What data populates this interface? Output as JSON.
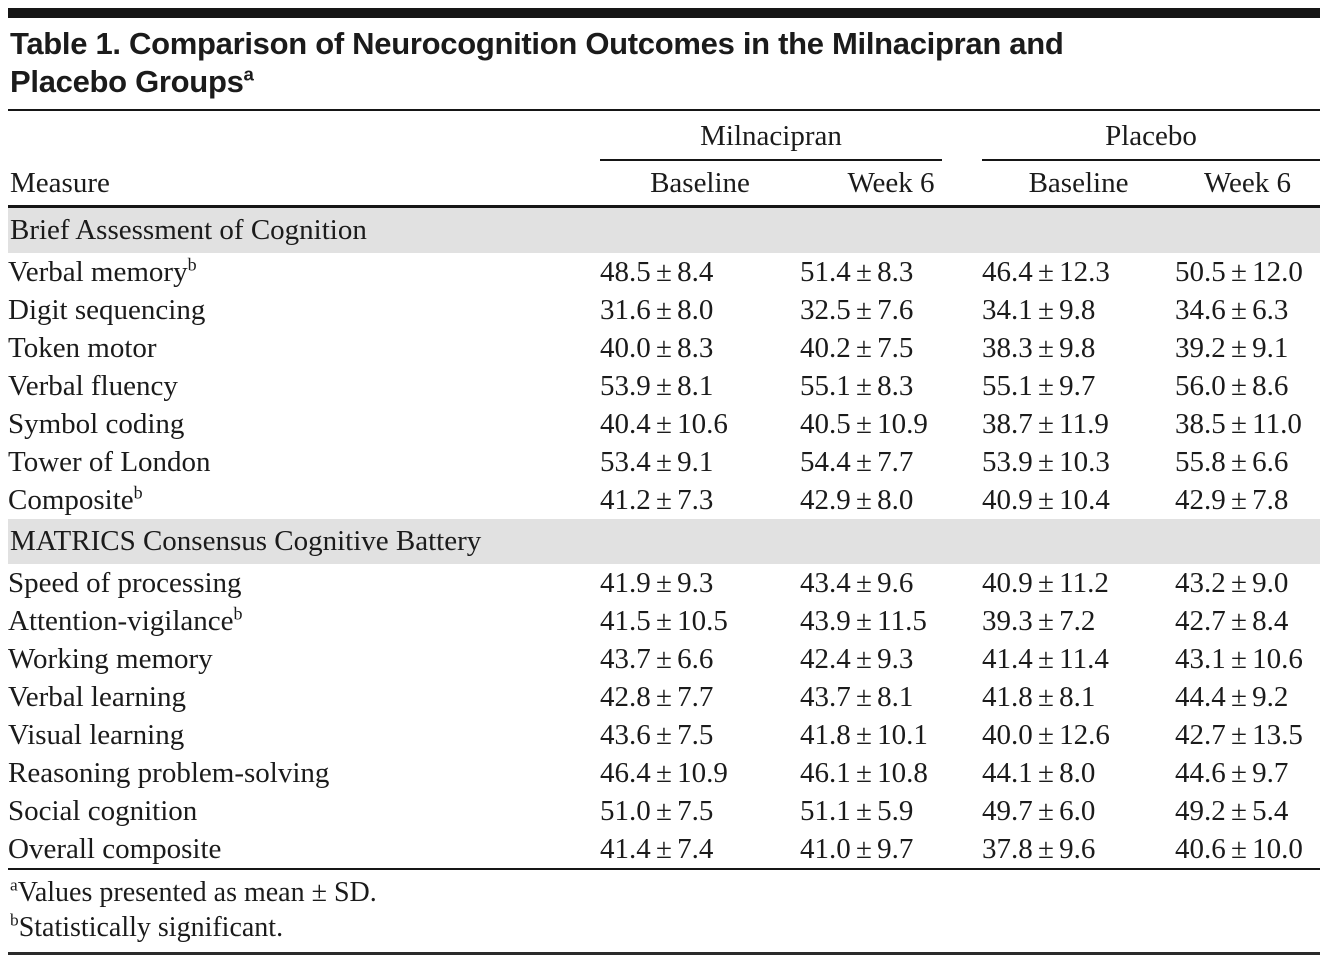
{
  "title": {
    "line1": "Table 1. Comparison of Neurocognition Outcomes in the Milnacipran and",
    "line2": "Placebo Groups",
    "sup": "a"
  },
  "table": {
    "measure_header": "Measure",
    "groups": [
      {
        "label": "Milnacipran"
      },
      {
        "label": "Placebo"
      }
    ],
    "sub_headers": [
      "Baseline",
      "Week 6",
      "Baseline",
      "Week 6"
    ],
    "sections": [
      {
        "header": "Brief Assessment of Cognition",
        "rows": [
          {
            "measure": "Verbal memory",
            "sup": "b",
            "values": [
              "48.5 ± 8.4",
              "51.4 ± 8.3",
              "46.4 ± 12.3",
              "50.5 ± 12.0"
            ]
          },
          {
            "measure": "Digit sequencing",
            "sup": "",
            "values": [
              "31.6 ± 8.0",
              "32.5 ± 7.6",
              "34.1 ± 9.8",
              "34.6 ± 6.3"
            ]
          },
          {
            "measure": "Token motor",
            "sup": "",
            "values": [
              "40.0 ± 8.3",
              "40.2 ± 7.5",
              "38.3 ± 9.8",
              "39.2 ± 9.1"
            ]
          },
          {
            "measure": "Verbal fluency",
            "sup": "",
            "values": [
              "53.9 ± 8.1",
              "55.1 ± 8.3",
              "55.1 ± 9.7",
              "56.0 ± 8.6"
            ]
          },
          {
            "measure": "Symbol coding",
            "sup": "",
            "values": [
              "40.4 ± 10.6",
              "40.5 ± 10.9",
              "38.7 ± 11.9",
              "38.5 ± 11.0"
            ]
          },
          {
            "measure": "Tower of London",
            "sup": "",
            "values": [
              "53.4 ± 9.1",
              "54.4 ± 7.7",
              "53.9 ± 10.3",
              "55.8 ± 6.6"
            ]
          },
          {
            "measure": "Composite",
            "sup": "b",
            "values": [
              "41.2 ± 7.3",
              "42.9 ± 8.0",
              "40.9 ± 10.4",
              "42.9 ± 7.8"
            ]
          }
        ]
      },
      {
        "header": "MATRICS Consensus Cognitive Battery",
        "rows": [
          {
            "measure": "Speed of processing",
            "sup": "",
            "values": [
              "41.9 ± 9.3",
              "43.4 ± 9.6",
              "40.9 ± 11.2",
              "43.2 ± 9.0"
            ]
          },
          {
            "measure": "Attention-vigilance",
            "sup": "b",
            "values": [
              "41.5 ± 10.5",
              "43.9 ± 11.5",
              "39.3 ± 7.2",
              "42.7 ± 8.4"
            ]
          },
          {
            "measure": "Working memory",
            "sup": "",
            "values": [
              "43.7 ± 6.6",
              "42.4 ± 9.3",
              "41.4 ± 11.4",
              "43.1 ± 10.6"
            ]
          },
          {
            "measure": "Verbal learning",
            "sup": "",
            "values": [
              "42.8 ± 7.7",
              "43.7 ± 8.1",
              "41.8 ± 8.1",
              "44.4 ± 9.2"
            ]
          },
          {
            "measure": "Visual learning",
            "sup": "",
            "values": [
              "43.6 ± 7.5",
              "41.8 ± 10.1",
              "40.0 ± 12.6",
              "42.7 ± 13.5"
            ]
          },
          {
            "measure": "Reasoning problem-solving",
            "sup": "",
            "values": [
              "46.4 ± 10.9",
              "46.1 ± 10.8",
              "44.1 ± 8.0",
              "44.6 ± 9.7"
            ]
          },
          {
            "measure": "Social cognition",
            "sup": "",
            "values": [
              "51.0 ± 7.5",
              "51.1 ± 5.9",
              "49.7 ± 6.0",
              "49.2 ± 5.4"
            ]
          },
          {
            "measure": "Overall composite",
            "sup": "",
            "values": [
              "41.4 ± 7.4",
              "41.0 ± 9.7",
              "37.8 ± 9.6",
              "40.6 ± 10.0"
            ]
          }
        ]
      }
    ]
  },
  "footnotes": [
    {
      "sup": "a",
      "text": "Values presented as mean ± SD."
    },
    {
      "sup": "b",
      "text": "Statistically significant."
    }
  ],
  "colors": {
    "section_band": "#e1e1e1",
    "rule": "#161616",
    "text": "#1b1b1b",
    "background": "#ffffff"
  }
}
